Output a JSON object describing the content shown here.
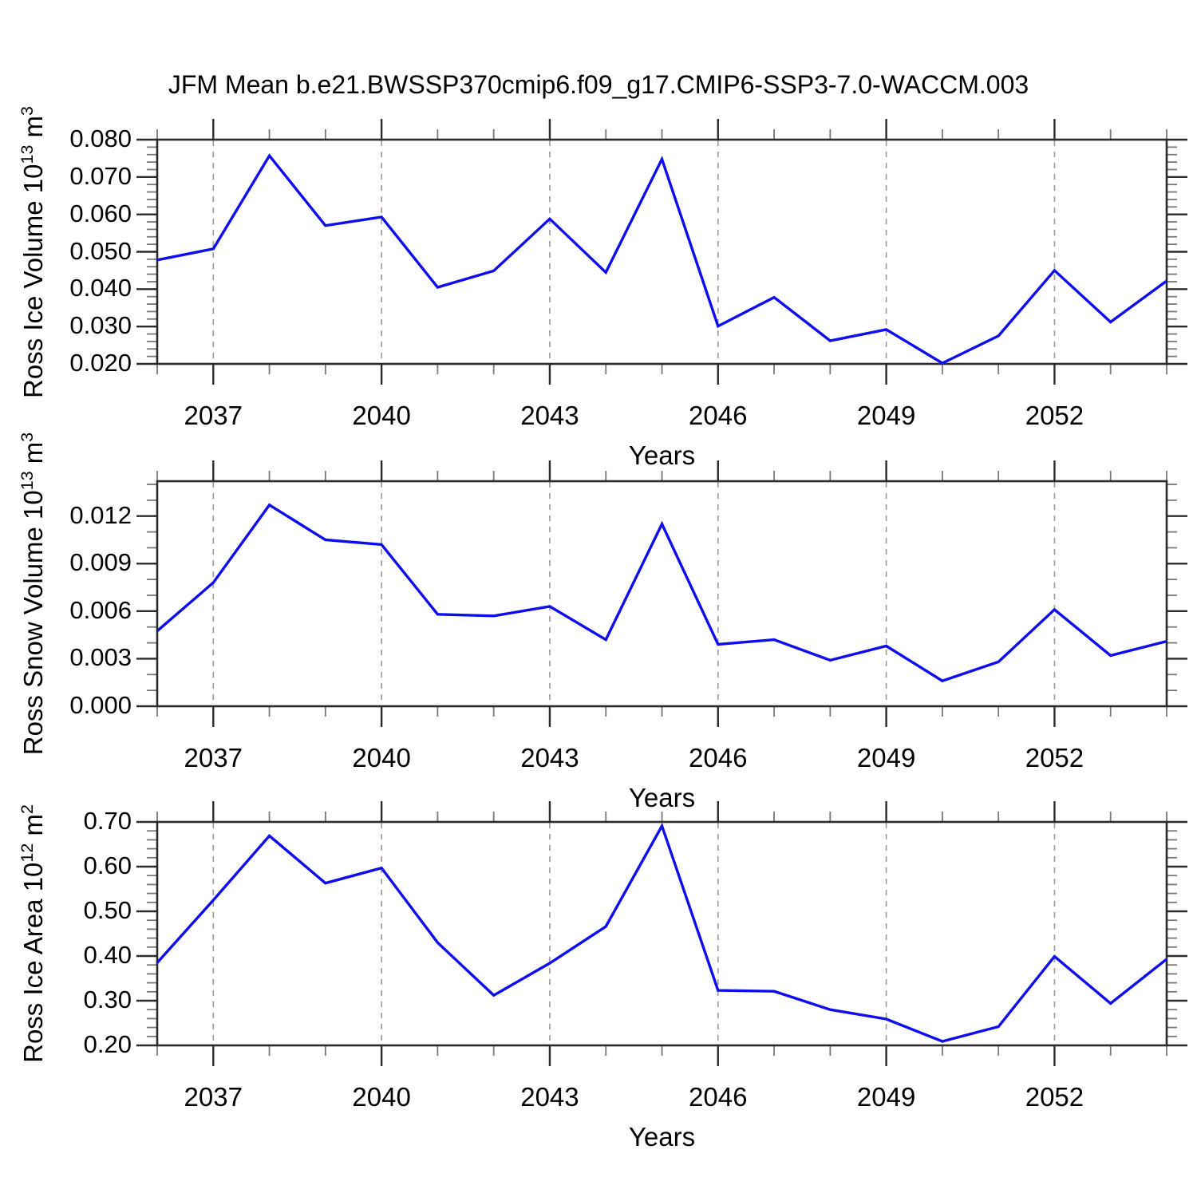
{
  "title": "JFM Mean b.e21.BWSSP370cmip6.f09_g17.CMIP6-SSP3-7.0-WACCM.003",
  "colors": {
    "line": "#0d0df0",
    "grid": "#999999",
    "axis": "#2b2b2b",
    "minor_tick": "#787878",
    "text": "#000000",
    "background": "#ffffff"
  },
  "chart_data": [
    {
      "type": "line",
      "name": "ross-ice-volume",
      "ylabel_parts": [
        {
          "t": "Ross Ice Volume 10"
        },
        {
          "t": "13",
          "sup": true
        },
        {
          "t": " m"
        },
        {
          "t": "3",
          "sup": true
        }
      ],
      "xlabel": "Years",
      "x": [
        2036,
        2037,
        2038,
        2039,
        2040,
        2041,
        2042,
        2043,
        2044,
        2045,
        2046,
        2047,
        2048,
        2049,
        2050,
        2051,
        2052,
        2053,
        2054
      ],
      "values": [
        0.0478,
        0.0508,
        0.0757,
        0.057,
        0.0593,
        0.0405,
        0.0449,
        0.0588,
        0.0445,
        0.0748,
        0.0301,
        0.0378,
        0.0262,
        0.0292,
        0.0202,
        0.0275,
        0.045,
        0.0312,
        0.0422
      ],
      "xlim": [
        2036,
        2054
      ],
      "ylim": [
        0.02,
        0.08
      ],
      "yticks": [
        {
          "v": 0.08,
          "label": "0.080"
        },
        {
          "v": 0.07,
          "label": "0.070"
        },
        {
          "v": 0.06,
          "label": "0.060"
        },
        {
          "v": 0.05,
          "label": "0.050"
        },
        {
          "v": 0.04,
          "label": "0.040"
        },
        {
          "v": 0.03,
          "label": "0.030"
        },
        {
          "v": 0.02,
          "label": "0.020"
        }
      ],
      "y_minor_step": 0.002,
      "xticks": [
        {
          "v": 2037,
          "label": "2037"
        },
        {
          "v": 2040,
          "label": "2040"
        },
        {
          "v": 2043,
          "label": "2043"
        },
        {
          "v": 2046,
          "label": "2046"
        },
        {
          "v": 2049,
          "label": "2049"
        },
        {
          "v": 2052,
          "label": "2052"
        }
      ],
      "x_minor_step": 1,
      "grid": "vertical dashed at major x ticks",
      "legend": "none"
    },
    {
      "type": "line",
      "name": "ross-snow-volume",
      "ylabel_parts": [
        {
          "t": "Ross Snow Volume 10"
        },
        {
          "t": "13",
          "sup": true
        },
        {
          "t": " m"
        },
        {
          "t": "3",
          "sup": true
        }
      ],
      "xlabel": "Years",
      "x": [
        2036,
        2037,
        2038,
        2039,
        2040,
        2041,
        2042,
        2043,
        2044,
        2045,
        2046,
        2047,
        2048,
        2049,
        2050,
        2051,
        2052,
        2053,
        2054
      ],
      "values": [
        0.00475,
        0.0078,
        0.0127,
        0.0105,
        0.0102,
        0.0058,
        0.0057,
        0.0063,
        0.0042,
        0.0115,
        0.0039,
        0.0042,
        0.0029,
        0.0038,
        0.0016,
        0.0028,
        0.0061,
        0.0032,
        0.0041
      ],
      "xlim": [
        2036,
        2054
      ],
      "ylim": [
        0.0,
        0.0142
      ],
      "yticks": [
        {
          "v": 0.012,
          "label": "0.012"
        },
        {
          "v": 0.009,
          "label": "0.009"
        },
        {
          "v": 0.006,
          "label": "0.006"
        },
        {
          "v": 0.003,
          "label": "0.003"
        },
        {
          "v": 0.0,
          "label": "0.000"
        }
      ],
      "y_minor_step": 0.001,
      "xticks": [
        {
          "v": 2037,
          "label": "2037"
        },
        {
          "v": 2040,
          "label": "2040"
        },
        {
          "v": 2043,
          "label": "2043"
        },
        {
          "v": 2046,
          "label": "2046"
        },
        {
          "v": 2049,
          "label": "2049"
        },
        {
          "v": 2052,
          "label": "2052"
        }
      ],
      "x_minor_step": 1,
      "grid": "vertical dashed at major x ticks",
      "legend": "none"
    },
    {
      "type": "line",
      "name": "ross-ice-area",
      "ylabel_parts": [
        {
          "t": "Ross Ice Area 10"
        },
        {
          "t": "12",
          "sup": true
        },
        {
          "t": " m"
        },
        {
          "t": "2",
          "sup": true
        }
      ],
      "xlabel": "Years",
      "x": [
        2036,
        2037,
        2038,
        2039,
        2040,
        2041,
        2042,
        2043,
        2044,
        2045,
        2046,
        2047,
        2048,
        2049,
        2050,
        2051,
        2052,
        2053,
        2054
      ],
      "values": [
        0.385,
        0.525,
        0.669,
        0.563,
        0.597,
        0.43,
        0.312,
        0.384,
        0.466,
        0.691,
        0.323,
        0.321,
        0.28,
        0.259,
        0.209,
        0.242,
        0.399,
        0.294,
        0.393
      ],
      "xlim": [
        2036,
        2054
      ],
      "ylim": [
        0.2,
        0.7
      ],
      "yticks": [
        {
          "v": 0.7,
          "label": "0.70"
        },
        {
          "v": 0.6,
          "label": "0.60"
        },
        {
          "v": 0.5,
          "label": "0.50"
        },
        {
          "v": 0.4,
          "label": "0.40"
        },
        {
          "v": 0.3,
          "label": "0.30"
        },
        {
          "v": 0.2,
          "label": "0.20"
        }
      ],
      "y_minor_step": 0.02,
      "xticks": [
        {
          "v": 2037,
          "label": "2037"
        },
        {
          "v": 2040,
          "label": "2040"
        },
        {
          "v": 2043,
          "label": "2043"
        },
        {
          "v": 2046,
          "label": "2046"
        },
        {
          "v": 2049,
          "label": "2049"
        },
        {
          "v": 2052,
          "label": "2052"
        }
      ],
      "x_minor_step": 1,
      "grid": "vertical dashed at major x ticks",
      "legend": "none"
    }
  ]
}
